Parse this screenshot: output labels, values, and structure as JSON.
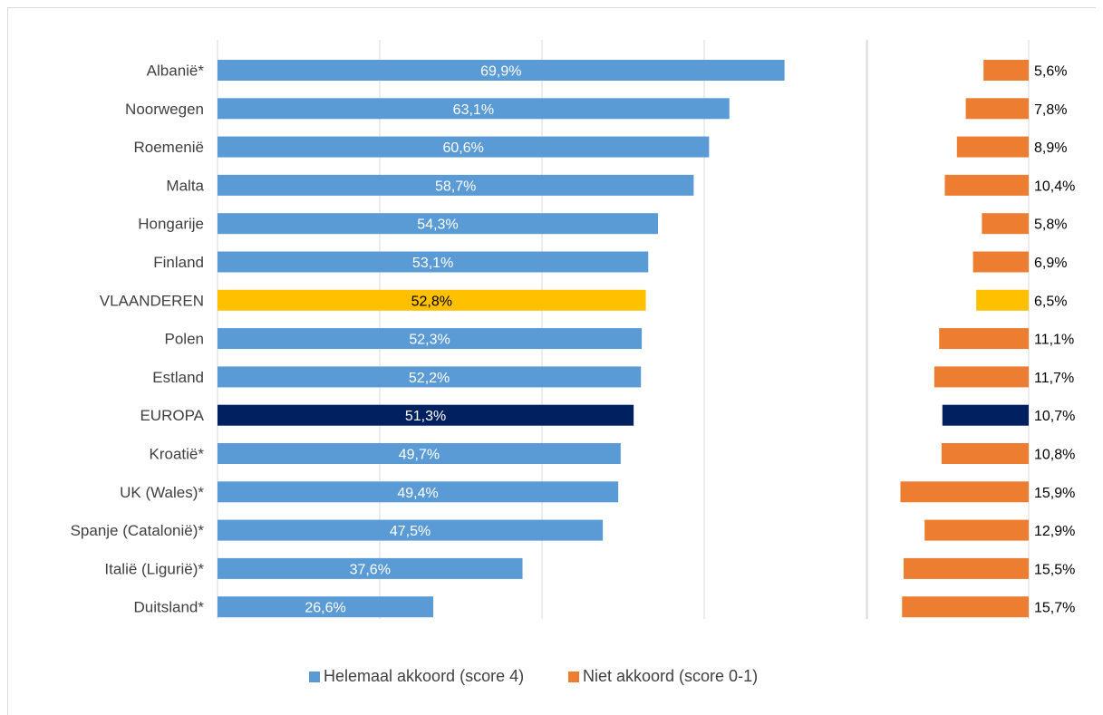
{
  "chart_data": {
    "type": "bar",
    "orientation": "horizontal",
    "title": "",
    "xlabel": "",
    "ylabel": "",
    "categories": [
      "Albanië*",
      "Noorwegen",
      "Roemenië",
      "Malta",
      "Hongarije",
      "Finland",
      "VLAANDEREN",
      "Polen",
      "Estland",
      "EUROPA",
      "Kroatië*",
      "UK (Wales)*",
      "Spanje (Catalonië)*",
      "Italië (Ligurië)*",
      "Duitsland*"
    ],
    "series": [
      {
        "name": "Helemaal akkoord (score 4)",
        "values": [
          69.9,
          63.1,
          60.6,
          58.7,
          54.3,
          53.1,
          52.8,
          52.3,
          52.2,
          51.3,
          49.7,
          49.4,
          47.5,
          37.6,
          26.6
        ],
        "labels": [
          "69,9%",
          "63,1%",
          "60,6%",
          "58,7%",
          "54,3%",
          "53,1%",
          "52,8%",
          "52,3%",
          "52,2%",
          "51,3%",
          "49,7%",
          "49,4%",
          "47,5%",
          "37,6%",
          "26,6%"
        ],
        "color": "#5b9bd5",
        "xlim": [
          0,
          100
        ]
      },
      {
        "name": "Niet akkoord (score 0-1)",
        "values": [
          5.6,
          7.8,
          8.9,
          10.4,
          5.8,
          6.9,
          6.5,
          11.1,
          11.7,
          10.7,
          10.8,
          15.9,
          12.9,
          15.5,
          15.7
        ],
        "labels": [
          "5,6%",
          "7,8%",
          "8,9%",
          "10,4%",
          "5,8%",
          "6,9%",
          "6,5%",
          "11,1%",
          "11,7%",
          "10,7%",
          "10,8%",
          "15,9%",
          "12,9%",
          "15,5%",
          "15,7%"
        ],
        "color": "#ed7d31",
        "xlim": [
          0,
          20
        ],
        "reversed": true
      }
    ],
    "highlights": {
      "VLAANDEREN": "#ffc000",
      "EUROPA": "#002060"
    },
    "grid": true,
    "legend_position": "bottom-center"
  }
}
